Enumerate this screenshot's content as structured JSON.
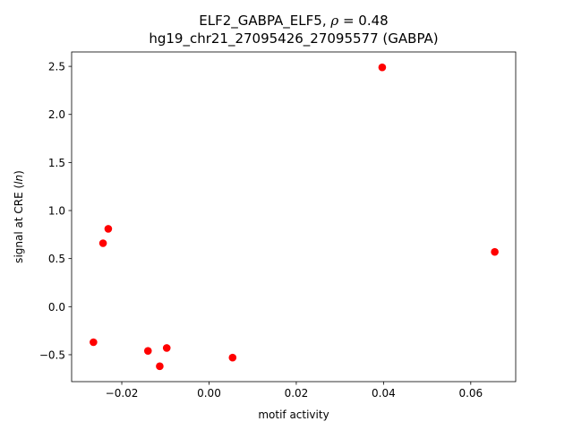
{
  "chart_data": {
    "type": "scatter",
    "title_line1_prefix": "ELF2_GABPA_ELF5, ",
    "title_rho_symbol": "ρ",
    "title_rho_value": " = 0.48",
    "title_line2": "hg19_chr21_27095426_27095577 (GABPA)",
    "xlabel": "motif activity",
    "ylabel_prefix": "signal at CRE (",
    "ylabel_italic": "ln",
    "ylabel_suffix": ")",
    "xlim": [
      -0.0315,
      0.0703
    ],
    "ylim": [
      -0.78,
      2.65
    ],
    "xticks": [
      -0.02,
      0.0,
      0.02,
      0.04,
      0.06
    ],
    "xtick_labels": [
      "−0.02",
      "0.00",
      "0.02",
      "0.04",
      "0.06"
    ],
    "yticks": [
      -0.5,
      0.0,
      0.5,
      1.0,
      1.5,
      2.0,
      2.5
    ],
    "ytick_labels": [
      "−0.5",
      "0.0",
      "0.5",
      "1.0",
      "1.5",
      "2.0",
      "2.5"
    ],
    "marker_color": "#ff0000",
    "points": [
      {
        "x": -0.0265,
        "y": -0.37
      },
      {
        "x": -0.0243,
        "y": 0.66
      },
      {
        "x": -0.0231,
        "y": 0.81
      },
      {
        "x": -0.014,
        "y": -0.46
      },
      {
        "x": -0.0113,
        "y": -0.62
      },
      {
        "x": -0.0097,
        "y": -0.43
      },
      {
        "x": 0.0054,
        "y": -0.53
      },
      {
        "x": 0.0397,
        "y": 2.49
      },
      {
        "x": 0.0655,
        "y": 0.57
      }
    ]
  }
}
